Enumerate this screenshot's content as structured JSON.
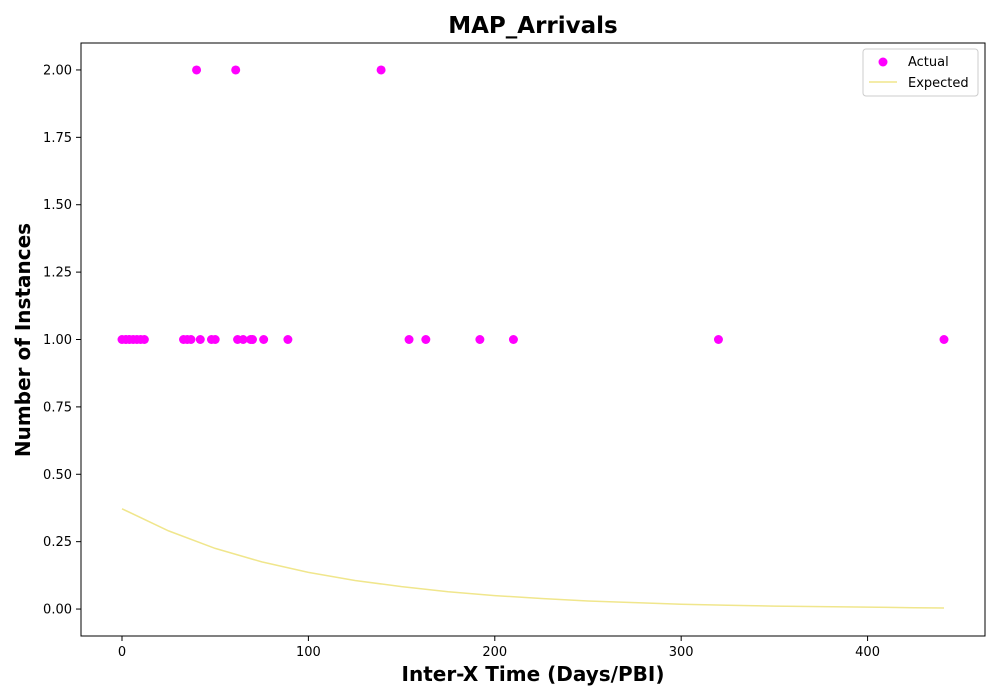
{
  "chart_data": {
    "type": "scatter",
    "title": "MAP_Arrivals",
    "xlabel": "Inter-X Time (Days/PBI)",
    "ylabel": "Number of Instances",
    "xlim": [
      -22,
      463
    ],
    "ylim": [
      -0.1,
      2.1
    ],
    "xticks": [
      0,
      100,
      200,
      300,
      400
    ],
    "yticks": [
      0.0,
      0.25,
      0.5,
      0.75,
      1.0,
      1.25,
      1.5,
      1.75,
      2.0
    ],
    "xtick_labels": [
      "0",
      "100",
      "200",
      "300",
      "400"
    ],
    "ytick_labels": [
      "0.00",
      "0.25",
      "0.50",
      "0.75",
      "1.00",
      "1.25",
      "1.50",
      "1.75",
      "2.00"
    ],
    "grid": false,
    "legend_position": "top-right",
    "series": [
      {
        "name": "Actual",
        "kind": "scatter",
        "color": "#ff00ff",
        "x": [
          0,
          2,
          4,
          6,
          8,
          10,
          12,
          33,
          35,
          37,
          40,
          42,
          48,
          50,
          61,
          62,
          65,
          69,
          70,
          76,
          89,
          139,
          154,
          163,
          192,
          210,
          320,
          441
        ],
        "y": [
          1,
          1,
          1,
          1,
          1,
          1,
          1,
          1,
          1,
          1,
          2,
          1,
          1,
          1,
          2,
          1,
          1,
          1,
          1,
          1,
          1,
          2,
          1,
          1,
          1,
          1,
          1,
          1
        ]
      },
      {
        "name": "Expected",
        "kind": "line",
        "color": "#f0e68c",
        "x": [
          0,
          25,
          50,
          75,
          100,
          125,
          150,
          175,
          200,
          225,
          250,
          275,
          300,
          325,
          350,
          375,
          400,
          425,
          441
        ],
        "y": [
          0.372,
          0.29,
          0.225,
          0.175,
          0.136,
          0.106,
          0.083,
          0.064,
          0.05,
          0.039,
          0.03,
          0.024,
          0.018,
          0.014,
          0.011,
          0.009,
          0.007,
          0.005,
          0.004
        ]
      }
    ]
  }
}
